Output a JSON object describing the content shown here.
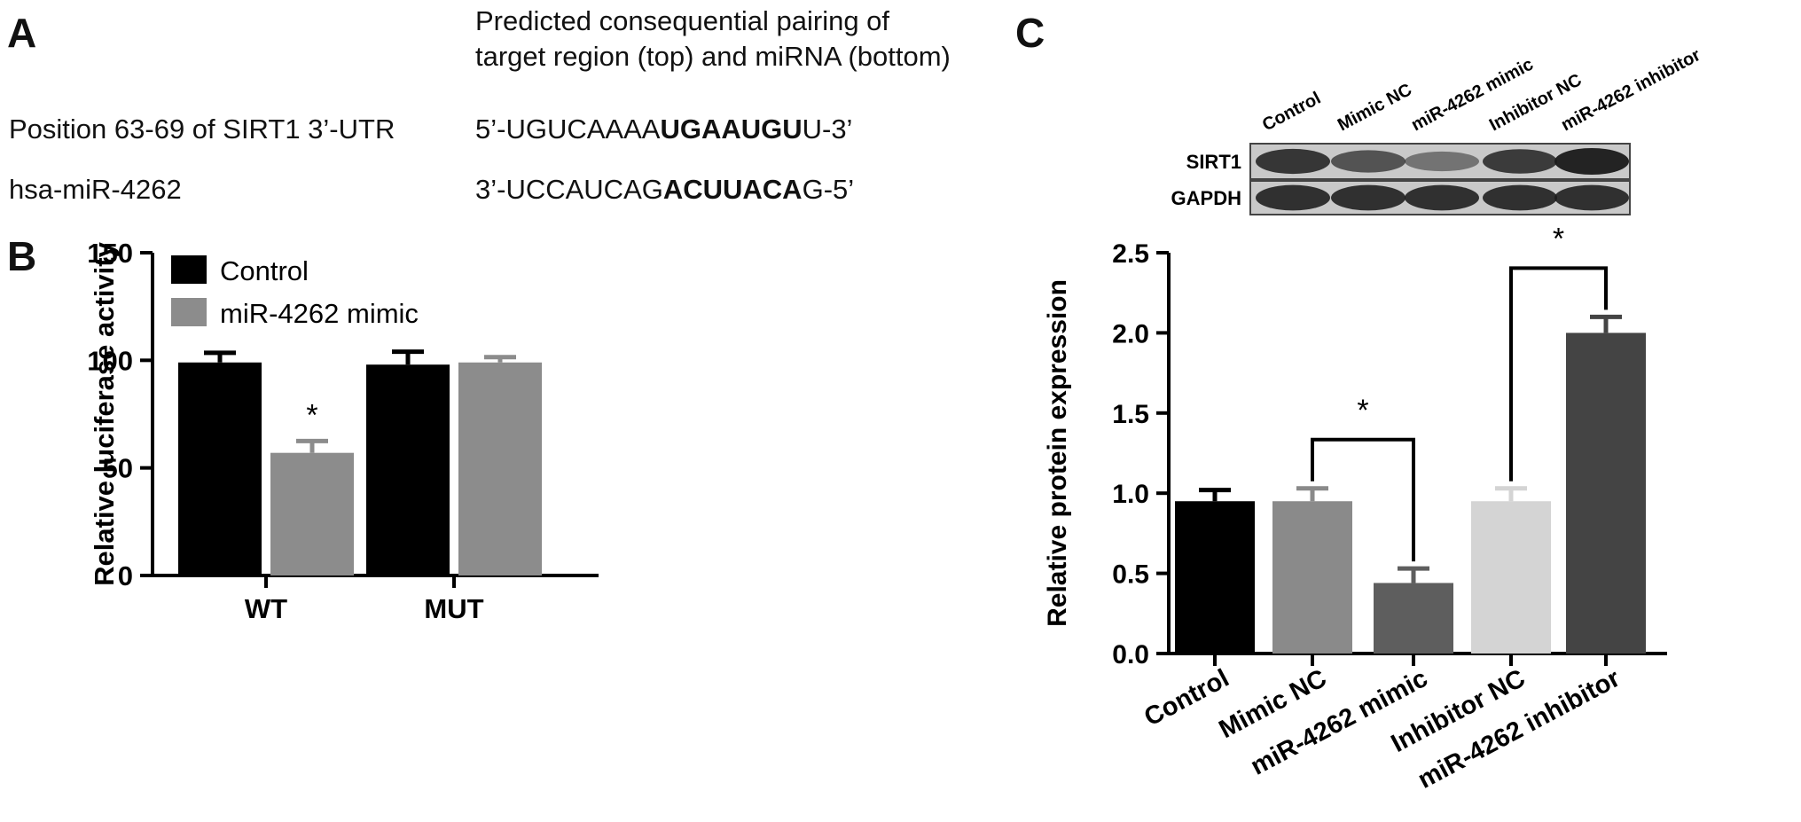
{
  "panel_a": {
    "letter": "A",
    "header_line1": "Predicted consequential pairing of",
    "header_line2": "target region (top) and miRNA (bottom)",
    "row1_label": "Position 63-69 of SIRT1 3’-UTR",
    "row1_seq_prefix": "5’-UGUCAAAA",
    "row1_seq_bold": "UGAAUGU",
    "row1_seq_suffix": "U-3’",
    "row2_label": "hsa-miR-4262",
    "row2_seq_prefix": "3’-UCCAUCAG",
    "row2_seq_bold": "ACUUACA",
    "row2_seq_suffix": "G-5’"
  },
  "panel_b_letter": "B",
  "panel_c_letter": "C",
  "blot": {
    "lane_labels": [
      "Control",
      "Mimic NC",
      "miR-4262 mimic",
      "Inhibitor NC",
      "miR-4262 inhibitor"
    ],
    "row_labels": [
      "SIRT1",
      "GAPDH"
    ],
    "sirt1_intensity": [
      0.85,
      0.6,
      0.35,
      0.8,
      1.0
    ],
    "gapdh_intensity": [
      0.9,
      0.9,
      0.9,
      0.9,
      0.9
    ]
  },
  "chart_data": [
    {
      "type": "bar",
      "ylabel": "Relative luciferase activity",
      "ylim": [
        0,
        150
      ],
      "yticks": [
        0,
        50,
        100,
        150
      ],
      "categories": [
        "WT",
        "MUT"
      ],
      "legend_position": "top-left",
      "series": [
        {
          "name": "Control",
          "color": "#000000",
          "values": [
            99,
            98
          ],
          "errors": [
            4.5,
            6
          ]
        },
        {
          "name": "miR-4262 mimic",
          "color": "#8c8c8c",
          "values": [
            57,
            99
          ],
          "errors": [
            5.5,
            2.5
          ]
        }
      ],
      "annotations": [
        {
          "text": "*",
          "category": "WT",
          "series": "miR-4262 mimic"
        }
      ]
    },
    {
      "type": "bar",
      "ylabel": "Relative protein expression",
      "ylim": [
        0,
        2.5
      ],
      "yticks": [
        "0.0",
        "0.5",
        "1.0",
        "1.5",
        "2.0",
        "2.5"
      ],
      "categories": [
        "Control",
        "Mimic NC",
        "miR-4262 mimic",
        "Inhibitor NC",
        "miR-4262 inhibitor"
      ],
      "values": [
        0.95,
        0.95,
        0.44,
        0.95,
        2.0
      ],
      "errors": [
        0.07,
        0.08,
        0.09,
        0.08,
        0.1
      ],
      "colors": [
        "#000000",
        "#8a8a8a",
        "#5e5e5e",
        "#d4d4d4",
        "#444444"
      ],
      "brackets": [
        {
          "from": "Mimic NC",
          "to": "miR-4262 mimic",
          "text": "*"
        },
        {
          "from": "Inhibitor NC",
          "to": "miR-4262 inhibitor",
          "text": "*"
        }
      ]
    }
  ]
}
